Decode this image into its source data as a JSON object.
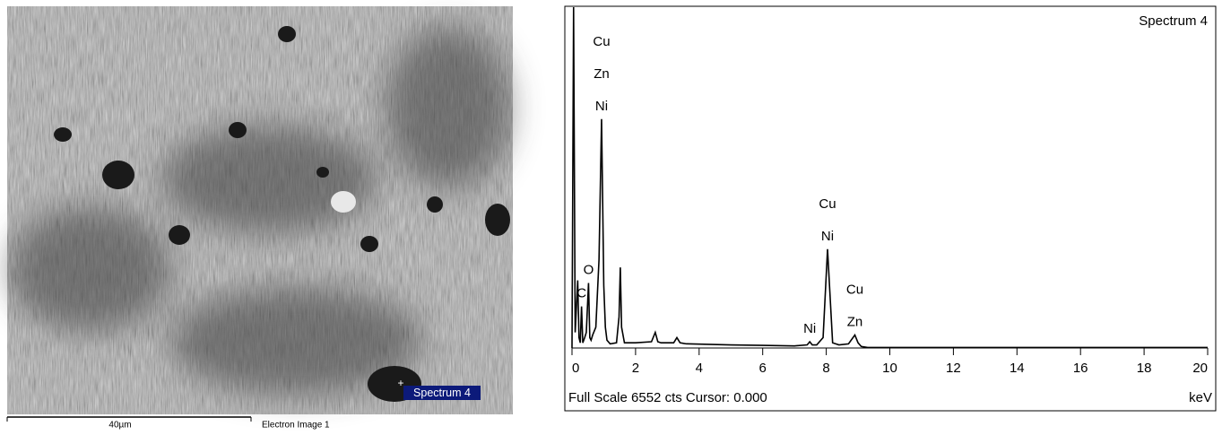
{
  "image": {
    "marker_label": "Spectrum 4",
    "scale_label": "40µm",
    "caption": "Electron Image 1"
  },
  "chart_data": {
    "type": "line",
    "title": "Spectrum 4",
    "footer": "Full Scale 6552 cts Cursor: 0.000",
    "xlabel": "keV",
    "color": "#000000",
    "x": [
      0,
      0.05,
      0.1,
      0.18,
      0.22,
      0.26,
      0.3,
      0.34,
      0.4,
      0.45,
      0.52,
      0.56,
      0.6,
      0.65,
      0.75,
      0.85,
      0.93,
      1.0,
      1.05,
      1.1,
      1.2,
      1.4,
      1.48,
      1.52,
      1.56,
      1.65,
      2.0,
      2.5,
      2.62,
      2.7,
      2.8,
      3.2,
      3.3,
      3.4,
      3.6,
      5.0,
      6.0,
      7.0,
      7.4,
      7.48,
      7.56,
      7.7,
      7.9,
      8.04,
      8.12,
      8.2,
      8.4,
      8.7,
      8.9,
      9.0,
      9.1,
      9.3,
      20
    ],
    "values": [
      0,
      6552,
      300,
      1300,
      200,
      100,
      800,
      100,
      200,
      300,
      1250,
      200,
      150,
      250,
      400,
      1700,
      4400,
      1200,
      400,
      150,
      80,
      100,
      600,
      1550,
      400,
      100,
      100,
      120,
      300,
      120,
      100,
      100,
      200,
      100,
      80,
      60,
      50,
      40,
      60,
      120,
      60,
      60,
      200,
      1900,
      1000,
      100,
      60,
      80,
      250,
      100,
      30,
      10,
      10
    ],
    "xlim": [
      0,
      20
    ],
    "xticks": [
      0,
      2,
      4,
      6,
      8,
      10,
      12,
      14,
      16,
      18,
      20
    ],
    "ylim": [
      0,
      6552
    ],
    "annotations": [
      {
        "x": 0.93,
        "labels": [
          "Cu",
          "Zn",
          "Ni"
        ]
      },
      {
        "x": 0.52,
        "labels": [
          "O"
        ]
      },
      {
        "x": 0.3,
        "labels": [
          "C"
        ]
      },
      {
        "x": 7.48,
        "labels": [
          "Ni"
        ]
      },
      {
        "x": 8.04,
        "labels": [
          "Cu",
          "Ni"
        ]
      },
      {
        "x": 8.9,
        "labels": [
          "Cu",
          "Zn"
        ]
      }
    ]
  }
}
